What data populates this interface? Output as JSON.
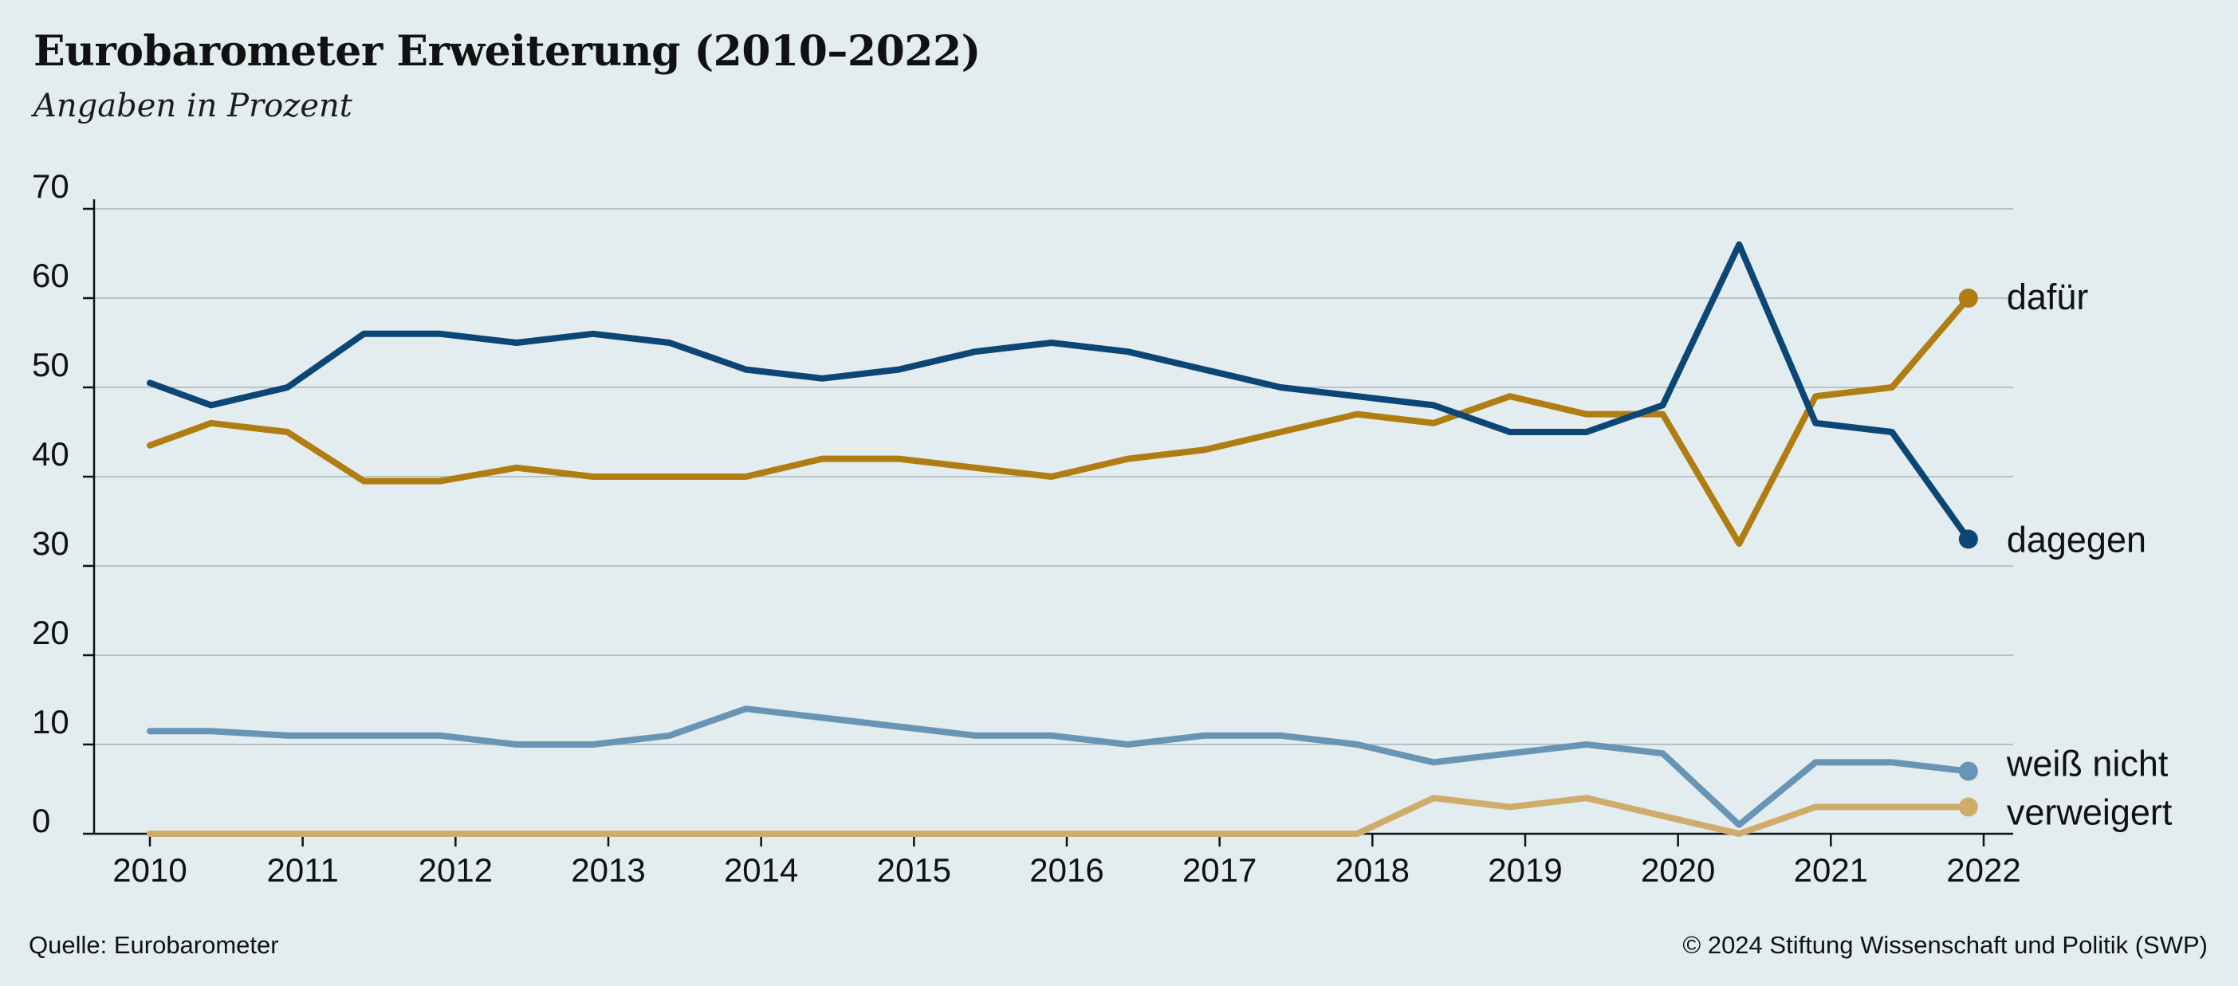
{
  "header": {
    "title": "Eurobarometer Erweiterung (2010–2022)",
    "subtitle": "Angaben in Prozent"
  },
  "footer": {
    "source": "Quelle: Eurobarometer",
    "copyright": "© 2024 Stiftung Wissenschaft und Politik (SWP)"
  },
  "colors": {
    "background": "#e3edf0",
    "dafuer": "#b07d13",
    "dagegen": "#0b4675",
    "weiss_nicht": "#6894b6",
    "verweigert": "#cfac6a",
    "grid": "#a9b5bb",
    "axis": "#111111"
  },
  "chart_data": {
    "type": "line",
    "title": "Eurobarometer Erweiterung (2010–2022)",
    "subtitle": "Angaben in Prozent",
    "xlabel": "",
    "ylabel": "",
    "xlim": [
      2010,
      2022
    ],
    "ylim": [
      0,
      70
    ],
    "x_ticks": [
      "2010",
      "2011",
      "2012",
      "2013",
      "2014",
      "2015",
      "2016",
      "2017",
      "2018",
      "2019",
      "2020",
      "2021",
      "2022"
    ],
    "y_ticks": [
      "0",
      "10",
      "20",
      "30",
      "40",
      "50",
      "60",
      "70"
    ],
    "grid": true,
    "legend": "end-of-line labels",
    "x": [
      2010.0,
      2010.4,
      2010.9,
      2011.4,
      2011.9,
      2012.4,
      2012.9,
      2013.4,
      2013.9,
      2014.4,
      2014.9,
      2015.4,
      2015.9,
      2016.4,
      2016.9,
      2017.4,
      2017.9,
      2018.4,
      2018.9,
      2019.4,
      2019.9,
      2020.4,
      2020.9,
      2021.4,
      2021.9
    ],
    "series": [
      {
        "name": "dafür",
        "key": "dafuer",
        "values": [
          43.5,
          46,
          45,
          39.5,
          39.5,
          41,
          40,
          40,
          40,
          42,
          42,
          41,
          40,
          42,
          43,
          45,
          47,
          46,
          49,
          47,
          47,
          32.5,
          49,
          50,
          60
        ]
      },
      {
        "name": "dagegen",
        "key": "dagegen",
        "values": [
          50.5,
          48,
          50,
          56,
          56,
          55,
          56,
          55,
          52,
          51,
          52,
          54,
          55,
          54,
          52,
          50,
          49,
          48,
          45,
          45,
          48,
          66,
          46,
          45,
          33
        ]
      },
      {
        "name": "weiß nicht",
        "key": "weiss_nicht",
        "values": [
          11.5,
          11.5,
          11,
          11,
          11,
          10,
          10,
          11,
          14,
          13,
          12,
          11,
          11,
          10,
          11,
          11,
          10,
          8,
          9,
          10,
          9,
          1,
          8,
          8,
          7
        ]
      },
      {
        "name": "verweigert",
        "key": "verweigert",
        "values": [
          0,
          0,
          0,
          0,
          0,
          0,
          0,
          0,
          0,
          0,
          0,
          0,
          0,
          0,
          0,
          0,
          0,
          4,
          3,
          4,
          2,
          0,
          3,
          3,
          3
        ]
      }
    ]
  }
}
